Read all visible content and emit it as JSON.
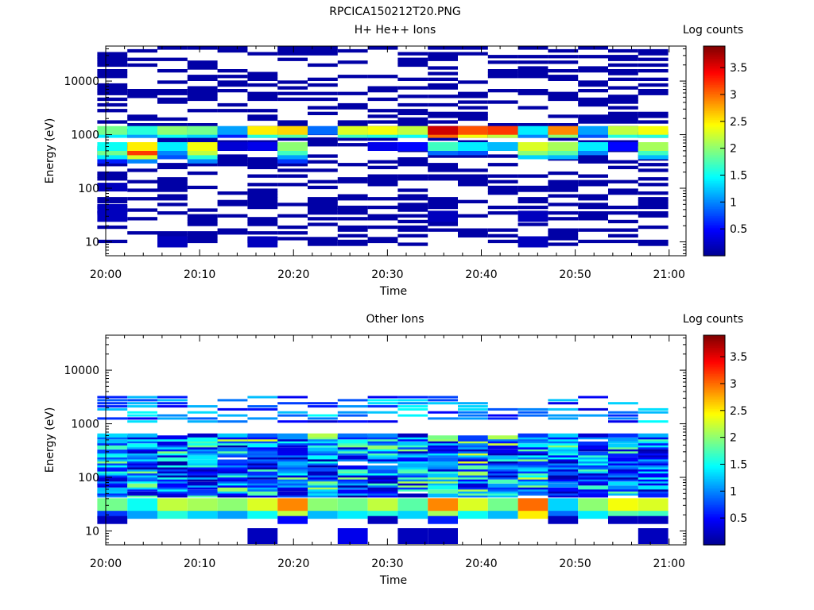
{
  "figure_title": "RPCICA150212T20.PNG",
  "colors": {
    "colormap": [
      "#00008f",
      "#0000ff",
      "#0080ff",
      "#00ffff",
      "#80ff80",
      "#ffff00",
      "#ff8000",
      "#ff0000",
      "#800000"
    ]
  },
  "chart_data": [
    {
      "type": "heatmap",
      "title": "H+ He++ Ions",
      "xlabel": "Time",
      "ylabel": "Energy (eV)",
      "colorbar_label": "Log counts",
      "x_ticks": [
        "20:00",
        "20:10",
        "20:20",
        "20:30",
        "20:40",
        "20:50",
        "21:00"
      ],
      "y_ticks": [
        "10",
        "100",
        "1000",
        "10000"
      ],
      "y_scale": "log",
      "ylim": [
        5.5,
        45000
      ],
      "colorbar_ticks": [
        "0.5",
        "1",
        "1.5",
        "2",
        "2.5",
        "3",
        "3.5"
      ],
      "colorbar_range": [
        0,
        3.9
      ],
      "time_columns_minutes_after_2000": [
        0.7,
        3.9,
        7.1,
        10.3,
        13.5,
        16.7,
        19.9,
        23.1,
        26.3,
        29.5,
        32.7,
        35.9,
        39.1,
        42.3,
        45.5,
        48.7,
        51.9,
        55.1,
        58.3
      ],
      "values_log_counts_by_column": [
        {
          "1200": 1.9,
          "1050": 1.4,
          "600": 1.5,
          "500": 1.9,
          "420": 1.4,
          "350": 0.6,
          "105": 0.2,
          "42": 0.2,
          "30": 0.2
        },
        {
          "1200": 1.6,
          "1050": 1.1,
          "600": 2.5,
          "500": 3.2,
          "420": 2.3,
          "350": 1.0
        },
        {
          "1200": 2.0,
          "1050": 1.5,
          "600": 1.4,
          "500": 1.0,
          "420": 0.8,
          "10": 0.2
        },
        {
          "1200": 1.9,
          "1050": 1.3,
          "600": 2.4,
          "500": 2.2,
          "420": 1.6,
          "350": 1.0
        },
        {
          "1200": 1.1,
          "1050": 0.6,
          "600": 0.3
        },
        {
          "1200": 2.5,
          "1050": 1.6,
          "600": 0.4,
          "10": 0.2
        },
        {
          "1200": 2.6,
          "1050": 1.8,
          "600": 2.0,
          "500": 1.7,
          "420": 1.1,
          "350": 0.7
        },
        {
          "1200": 0.9
        },
        {
          "1200": 2.3,
          "1050": 1.7
        },
        {
          "1200": 2.4,
          "1050": 1.6,
          "600": 0.4
        },
        {
          "1200": 2.2,
          "1050": 1.5,
          "600": 0.5
        },
        {
          "1200": 3.6,
          "1050": 3.0,
          "600": 1.7,
          "500": 0.9,
          "30": 0.2
        },
        {
          "1200": 3.1,
          "1050": 2.4,
          "600": 1.4,
          "500": 0.8
        },
        {
          "1200": 3.2,
          "1050": 2.2,
          "600": 1.2
        },
        {
          "1200": 1.4,
          "1050": 1.0,
          "600": 2.3,
          "500": 2.0,
          "420": 1.3,
          "30": 0.2,
          "10": 0.2
        },
        {
          "1200": 2.9,
          "1050": 2.0,
          "600": 2.1,
          "500": 1.8,
          "420": 1.2
        },
        {
          "1200": 1.1,
          "1050": 0.8,
          "600": 1.4,
          "500": 1.0
        },
        {
          "1200": 2.2,
          "1050": 1.6,
          "600": 0.5
        },
        {
          "1200": 2.4,
          "1050": 1.6,
          "600": 2.1,
          "500": 1.7,
          "420": 1.2
        }
      ],
      "background_sparse_level": 0.1
    },
    {
      "type": "heatmap",
      "title": "Other Ions",
      "xlabel": "Time",
      "ylabel": "Energy (eV)",
      "colorbar_label": "Log counts",
      "x_ticks": [
        "20:00",
        "20:10",
        "20:20",
        "20:30",
        "20:40",
        "20:50",
        "21:00"
      ],
      "y_ticks": [
        "10",
        "100",
        "1000",
        "10000"
      ],
      "y_scale": "log",
      "ylim": [
        5.5,
        45000
      ],
      "colorbar_ticks": [
        "0.5",
        "1",
        "1.5",
        "2",
        "2.5",
        "3",
        "3.5"
      ],
      "colorbar_range": [
        0,
        3.9
      ],
      "time_columns_minutes_after_2000": [
        0.7,
        3.9,
        7.1,
        10.3,
        13.5,
        16.7,
        19.9,
        23.1,
        26.3,
        29.5,
        32.7,
        35.9,
        39.1,
        42.3,
        45.5,
        48.7,
        51.9,
        55.1,
        58.3
      ],
      "band_profile_log_counts": [
        {
          "energy": 30,
          "values": [
            1.9,
            1.5,
            2.2,
            2.1,
            2.0,
            2.3,
            2.9,
            2.0,
            1.9,
            2.2,
            1.8,
            2.9,
            2.3,
            1.9,
            3.0,
            1.3,
            2.0,
            2.4,
            2.3
          ]
        },
        {
          "energy": 20,
          "values": [
            0.7,
            1.1,
            1.6,
            1.3,
            1.1,
            1.5,
            2.2,
            1.2,
            1.4,
            1.6,
            1.3,
            2.1,
            1.5,
            1.2,
            2.5,
            0.9,
            1.4,
            1.8,
            1.7
          ]
        },
        {
          "energy": 16,
          "values": [
            0.2,
            0.0,
            0.0,
            0.0,
            0.0,
            0.0,
            0.5,
            0.0,
            0.0,
            0.2,
            0.0,
            0.6,
            0.0,
            0.0,
            0.0,
            0.2,
            0.0,
            0.2,
            0.2
          ]
        },
        {
          "energy": 8,
          "values": [
            0.0,
            0.0,
            0.0,
            0.0,
            0.0,
            0.2,
            0.0,
            0.0,
            0.4,
            0.0,
            0.2,
            0.2,
            0.0,
            0.0,
            0.0,
            0.0,
            0.0,
            0.0,
            0.2
          ]
        }
      ],
      "mid_energy_range_eV": [
        45,
        600
      ],
      "mid_energy_level_range": [
        0.1,
        2.5
      ]
    }
  ]
}
